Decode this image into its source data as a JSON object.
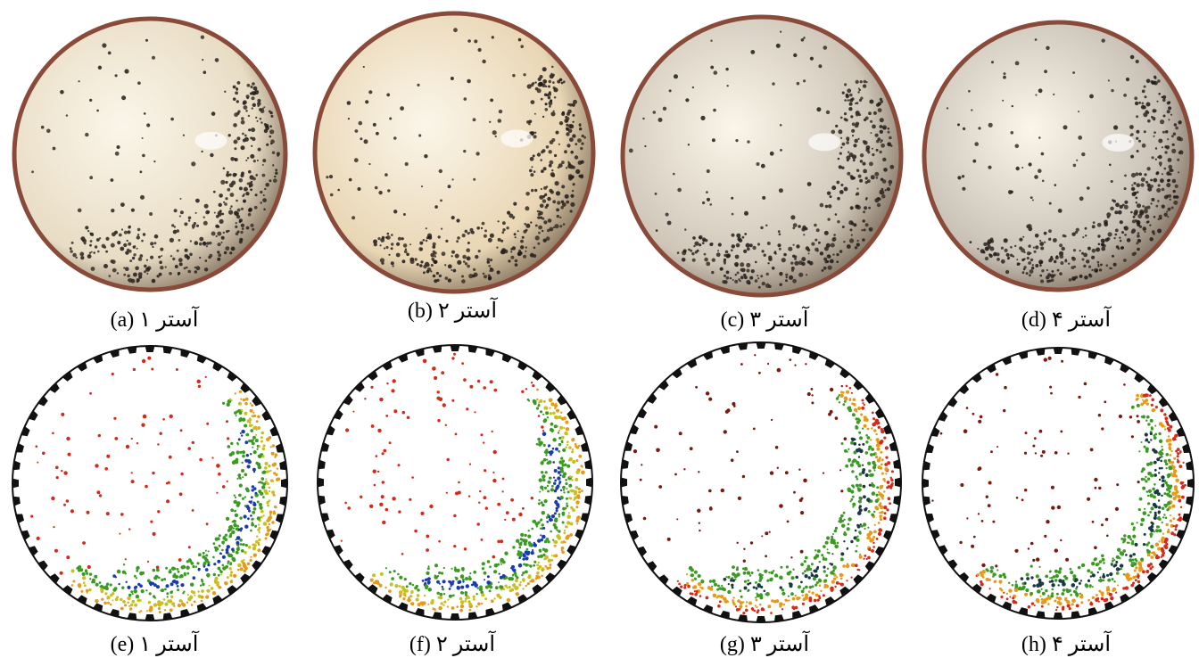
{
  "figure": {
    "rows": [
      {
        "kind": "experiment-photo",
        "panels": [
          {
            "caption": "(a) آستر ۱",
            "rim_color": "#8a4a3a",
            "fill": "#e8dcc4"
          },
          {
            "caption": "(b) آستر ۲",
            "rim_color": "#8a4a3a",
            "fill": "#e9d6b4"
          },
          {
            "caption": "(c) آستر ۳",
            "rim_color": "#8a4a3a",
            "fill": "#cfc6b8"
          },
          {
            "caption": "(d) آستر ۴",
            "rim_color": "#8a4a3a",
            "fill": "#c9c1b6"
          }
        ]
      },
      {
        "kind": "simulation",
        "panels": [
          {
            "caption": "(e) آستر ۱",
            "palette": [
              "#d42a1a",
              "#e59a1a",
              "#c9c020",
              "#3a9a22",
              "#1a3ab0"
            ]
          },
          {
            "caption": "(f) آستر ۲",
            "palette": [
              "#d42a1a",
              "#e59a1a",
              "#c9c020",
              "#3a9a22",
              "#1a3ab0"
            ]
          },
          {
            "caption": "(g) آستر ۳",
            "palette": [
              "#7a1a10",
              "#d42a1a",
              "#e59a1a",
              "#3a9a22",
              "#1a3a40"
            ]
          },
          {
            "caption": "(h) آستر ۴",
            "palette": [
              "#7a1a10",
              "#d42a1a",
              "#e59a1a",
              "#3a9a22",
              "#1a3a40"
            ]
          }
        ]
      }
    ]
  }
}
